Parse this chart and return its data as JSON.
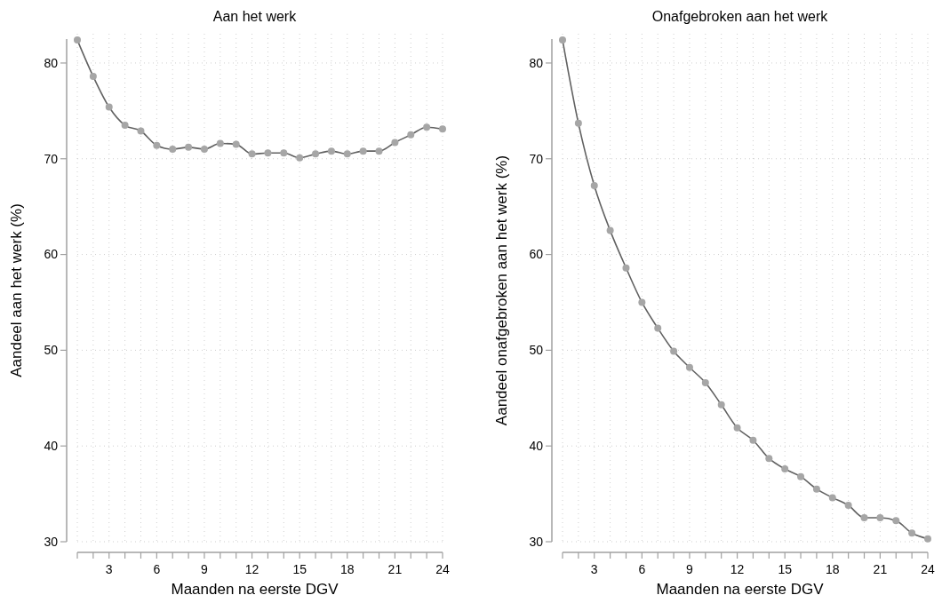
{
  "chart_data": [
    {
      "type": "line",
      "title": "Aan het werk",
      "xlabel": "Maanden na eerste DGV",
      "ylabel": "Aandeel aan het werk (%)",
      "x": [
        1,
        2,
        3,
        4,
        5,
        6,
        7,
        8,
        9,
        10,
        11,
        12,
        13,
        14,
        15,
        16,
        17,
        18,
        19,
        20,
        21,
        22,
        23,
        24
      ],
      "series": [
        {
          "color": "#a6a6a6",
          "values": [
            82.4,
            78.6,
            75.4,
            73.5,
            72.9,
            71.4,
            71.0,
            71.2,
            71.0,
            71.6,
            71.5,
            70.5,
            70.6,
            70.6,
            70.1,
            70.5,
            70.8,
            70.5,
            70.8,
            70.8,
            71.7,
            72.5,
            73.3,
            73.1
          ]
        }
      ],
      "xlim": [
        1,
        24
      ],
      "xticks": [
        {
          "value": 1,
          "label": null
        },
        {
          "value": 2,
          "label": null
        },
        3,
        {
          "value": 4,
          "label": null
        },
        {
          "value": 5,
          "label": null
        },
        6,
        {
          "value": 7,
          "label": null
        },
        {
          "value": 8,
          "label": null
        },
        9,
        {
          "value": 10,
          "label": null
        },
        {
          "value": 11,
          "label": null
        },
        12,
        {
          "value": 13,
          "label": null
        },
        {
          "value": 14,
          "label": null
        },
        15,
        {
          "value": 16,
          "label": null
        },
        {
          "value": 17,
          "label": null
        },
        18,
        {
          "value": 19,
          "label": null
        },
        {
          "value": 20,
          "label": null
        },
        21,
        {
          "value": 22,
          "label": null
        },
        {
          "value": 23,
          "label": null
        },
        24
      ],
      "ylim": [
        30,
        82.5
      ],
      "yticks": [
        30,
        40,
        50,
        60,
        70,
        80
      ],
      "grid": true,
      "marker": "circle",
      "line_style": "solid"
    },
    {
      "type": "line",
      "title": "Onafgebroken aan het werk",
      "xlabel": "Maanden na eerste DGV",
      "ylabel": "Aandeel onafgebroken aan het werk (%)",
      "x": [
        1,
        2,
        3,
        4,
        5,
        6,
        7,
        8,
        9,
        10,
        11,
        12,
        13,
        14,
        15,
        16,
        17,
        18,
        19,
        20,
        21,
        22,
        23,
        24
      ],
      "series": [
        {
          "color": "#a6a6a6",
          "values": [
            82.4,
            73.7,
            67.2,
            62.5,
            58.6,
            55.0,
            52.3,
            49.9,
            48.2,
            46.6,
            44.3,
            41.9,
            40.6,
            38.7,
            37.6,
            36.8,
            35.5,
            34.6,
            33.8,
            32.5,
            32.5,
            32.2,
            30.9,
            30.3
          ]
        }
      ],
      "xlim": [
        1,
        24
      ],
      "xticks": [
        {
          "value": 1,
          "label": null
        },
        {
          "value": 2,
          "label": null
        },
        3,
        {
          "value": 4,
          "label": null
        },
        {
          "value": 5,
          "label": null
        },
        6,
        {
          "value": 7,
          "label": null
        },
        {
          "value": 8,
          "label": null
        },
        9,
        {
          "value": 10,
          "label": null
        },
        {
          "value": 11,
          "label": null
        },
        12,
        {
          "value": 13,
          "label": null
        },
        {
          "value": 14,
          "label": null
        },
        15,
        {
          "value": 16,
          "label": null
        },
        {
          "value": 17,
          "label": null
        },
        18,
        {
          "value": 19,
          "label": null
        },
        {
          "value": 20,
          "label": null
        },
        21,
        {
          "value": 22,
          "label": null
        },
        {
          "value": 23,
          "label": null
        },
        24
      ],
      "ylim": [
        30,
        82.5
      ],
      "yticks": [
        30,
        40,
        50,
        60,
        70,
        80
      ],
      "grid": true,
      "marker": "circle",
      "line_style": "solid"
    }
  ]
}
